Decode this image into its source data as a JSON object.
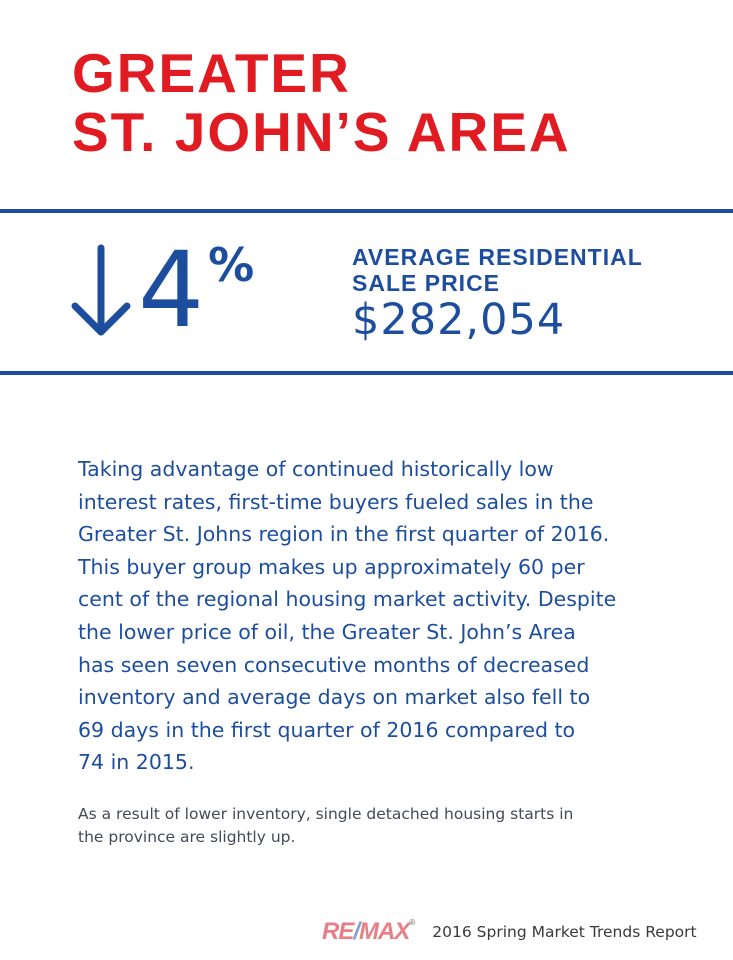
{
  "header": {
    "title_line1": "GREATER",
    "title_line2": "ST. JOHN’S AREA"
  },
  "stat": {
    "change_value": "4",
    "change_unit": "%",
    "direction": "down",
    "label_line1": "AVERAGE RESIDENTIAL",
    "label_line2": "SALE PRICE",
    "price": "$282,054"
  },
  "body": {
    "lines": [
      "Taking advantage of continued historically low",
      "interest rates, first-time buyers fueled sales in the",
      "Greater St. Johns region in the first quarter of 2016.",
      "This buyer group makes up approximately 60 per",
      "cent of the regional housing market activity. Despite",
      "the lower price of oil, the Greater St. John’s Area",
      "has seen seven consecutive months of decreased",
      "inventory and average days on market also fell to",
      "69 days in the first quarter of 2016 compared to",
      "74 in 2015."
    ]
  },
  "note": {
    "lines": [
      "As a result of lower inventory, single detached housing starts in",
      "the province are slightly up."
    ]
  },
  "footer": {
    "logo_part1": "RE",
    "logo_slash": "/",
    "logo_part2": "MAX",
    "report_name": "2016 Spring Market Trends Report"
  },
  "colors": {
    "title_red": "#e11b22",
    "accent_blue": "#1d4e9e"
  }
}
